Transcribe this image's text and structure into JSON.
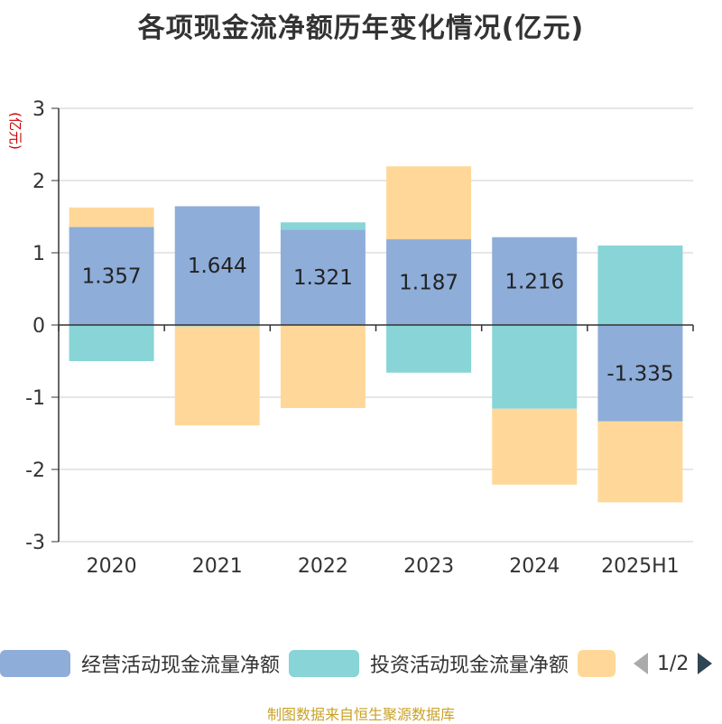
{
  "title": "各项现金流净额历年变化情况(亿元)",
  "source": "制图数据来自恒生聚源数据库",
  "legend": {
    "pager_text": "1/2",
    "prev_icon": "triangle-left-icon",
    "next_icon": "triangle-right-icon"
  },
  "chart_data": {
    "type": "bar",
    "stacked": true,
    "categories": [
      "2020",
      "2021",
      "2022",
      "2023",
      "2024",
      "2025H1"
    ],
    "ylabel": "(亿元)",
    "ylim": [
      -3,
      3
    ],
    "yticks": [
      3,
      2,
      1,
      0,
      -1,
      -2,
      -3
    ],
    "grid": true,
    "legend_position": "bottom",
    "series": [
      {
        "name": "经营活动现金流量净额",
        "color": "#8eadd9",
        "values": [
          1.357,
          1.644,
          1.321,
          1.187,
          1.216,
          -1.335
        ],
        "labels": [
          "1.357",
          "1.644",
          "1.321",
          "1.187",
          "1.216",
          "-1.335"
        ]
      },
      {
        "name": "投资活动现金流量净额",
        "color": "#88d4d6",
        "values": [
          -0.5,
          -0.02,
          0.1,
          -0.66,
          -1.16,
          1.1
        ]
      },
      {
        "name": "",
        "color": "#ffd899",
        "values": [
          0.27,
          -1.37,
          -1.15,
          1.01,
          -1.05,
          -1.12
        ]
      }
    ]
  }
}
